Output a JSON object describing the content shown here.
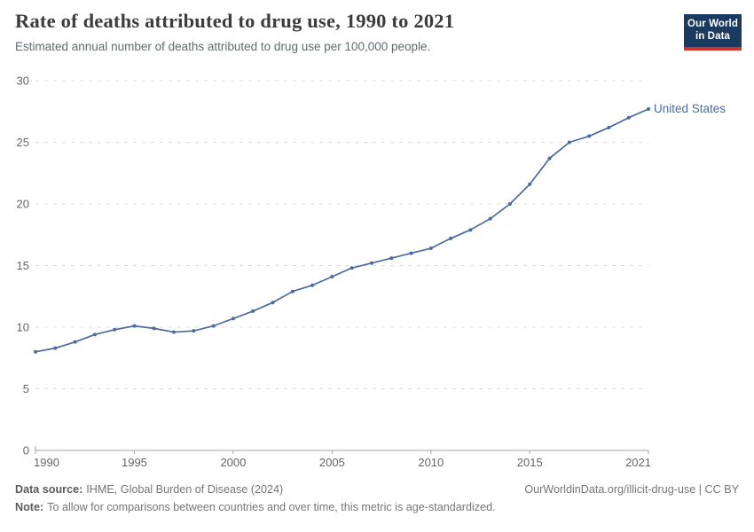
{
  "logo": {
    "line1": "Our World",
    "line2": "in Data"
  },
  "chart_data": {
    "type": "line",
    "title": "Rate of deaths attributed to drug use, 1990 to 2021",
    "subtitle": "Estimated annual number of deaths attributed to drug use per 100,000 people.",
    "entity_label": "United States",
    "xlim": [
      1990,
      2021
    ],
    "ylim": [
      0,
      30
    ],
    "yticks": [
      0,
      5,
      10,
      15,
      20,
      25,
      30
    ],
    "xticks": [
      1990,
      1995,
      2000,
      2005,
      2010,
      2015,
      2021
    ],
    "grid": "horizontal-dashed",
    "legend_position": "right-end-of-line",
    "x": [
      1990,
      1991,
      1992,
      1993,
      1994,
      1995,
      1996,
      1997,
      1998,
      1999,
      2000,
      2001,
      2002,
      2003,
      2004,
      2005,
      2006,
      2007,
      2008,
      2009,
      2010,
      2011,
      2012,
      2013,
      2014,
      2015,
      2016,
      2017,
      2018,
      2019,
      2020,
      2021
    ],
    "series": [
      {
        "name": "United States",
        "color": "#4C6A9C",
        "values": [
          8.0,
          8.3,
          8.8,
          9.4,
          9.8,
          10.1,
          9.9,
          9.6,
          9.7,
          10.1,
          10.7,
          11.3,
          12.0,
          12.9,
          13.4,
          14.1,
          14.8,
          15.2,
          15.6,
          16.0,
          16.4,
          17.2,
          17.9,
          18.8,
          20.0,
          21.6,
          23.7,
          25.0,
          25.5,
          26.2,
          27.0,
          27.7
        ]
      }
    ]
  },
  "footer": {
    "source_label": "Data source:",
    "source_text": "IHME, Global Burden of Disease (2024)",
    "credit": "OurWorldinData.org/illicit-drug-use | CC BY",
    "note_label": "Note:",
    "note_text": "To allow for comparisons between countries and over time, this metric is age-standardized."
  },
  "colors": {
    "line": "#4C6A9C",
    "grid": "#dcdcdc",
    "axis": "#a3a3a3",
    "tick_label": "#666666",
    "title": "#3c3c3c",
    "subtitle": "#616a6d",
    "footer": "#757575",
    "logo_bg": "#1a3a60",
    "logo_accent": "#d0342c"
  }
}
